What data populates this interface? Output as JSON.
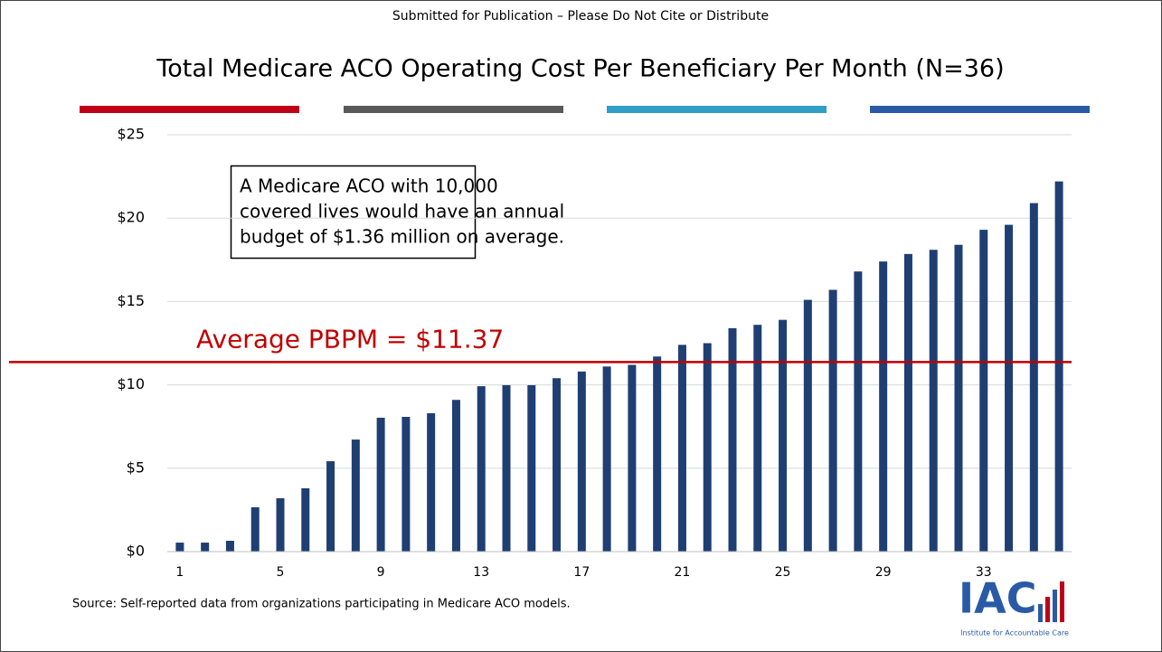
{
  "header": "Submitted for Publication – Please Do Not Cite or Distribute",
  "chart_data": {
    "type": "bar",
    "title": "Total Medicare ACO Operating Cost Per Beneficiary Per Month (N=36)",
    "categories": [
      "1",
      null,
      null,
      null,
      "5",
      null,
      null,
      null,
      "9",
      null,
      null,
      null,
      "13",
      null,
      null,
      null,
      "17",
      null,
      null,
      null,
      "21",
      null,
      null,
      null,
      "25",
      null,
      null,
      null,
      "29",
      null,
      null,
      null,
      "33",
      null,
      null,
      null
    ],
    "values": [
      0.54,
      0.54,
      0.65,
      2.66,
      3.2,
      3.8,
      5.42,
      6.72,
      8.03,
      8.08,
      8.3,
      9.1,
      9.92,
      9.98,
      9.98,
      10.4,
      10.8,
      11.1,
      11.2,
      11.7,
      12.4,
      12.5,
      13.4,
      13.6,
      13.9,
      15.1,
      15.7,
      16.8,
      17.4,
      17.85,
      18.1,
      18.4,
      19.3,
      19.6,
      20.9,
      22.2
    ],
    "color": "#1f3f73",
    "ylim": [
      0,
      25
    ],
    "yticks": [
      {
        "value": 0,
        "label": "$0"
      },
      {
        "value": 5,
        "label": "$5"
      },
      {
        "value": 10,
        "label": "$10"
      },
      {
        "value": 15,
        "label": "$15"
      },
      {
        "value": 20,
        "label": "$20"
      },
      {
        "value": 25,
        "label": "$25"
      }
    ],
    "grid": true,
    "average": {
      "value": 11.37,
      "label": "Average PBPM = $11.37",
      "color": "#c00000"
    },
    "annotation": [
      "A Medicare ACO with 10,000",
      "covered lives would have an annual",
      "budget of $1.36 million on average."
    ],
    "source": "Source: Self-reported data from organizations participating in Medicare ACO models."
  },
  "logo": {
    "name": "IAC",
    "subtitle": "Institute for Accountable Care"
  }
}
